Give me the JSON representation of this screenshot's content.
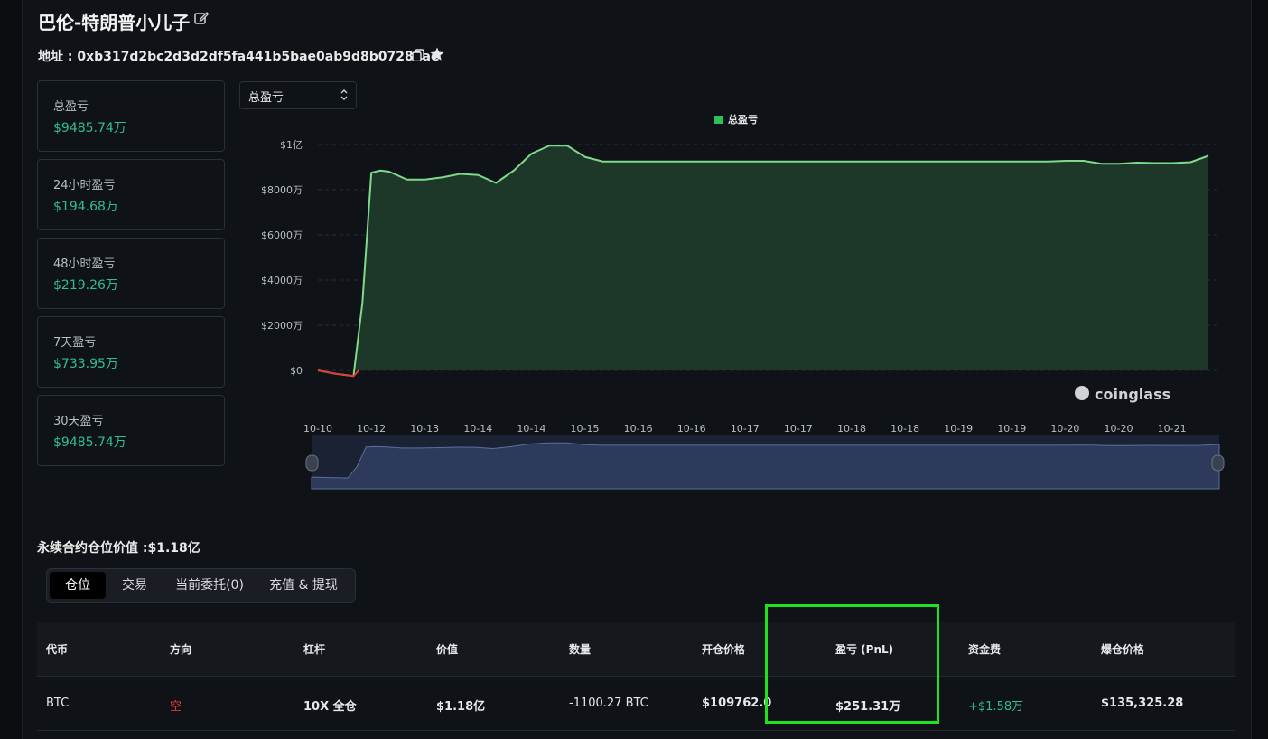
{
  "header": {
    "title": "巴伦-特朗普小儿子",
    "address_label": "地址 : 0xb317d2bc2d3d2df5fa441b5bae0ab9d8b07283ae"
  },
  "stats": [
    {
      "label": "总盈亏",
      "value": "$9485.74万"
    },
    {
      "label": "24小时盈亏",
      "value": "$194.68万"
    },
    {
      "label": "48小时盈亏",
      "value": "$219.26万"
    },
    {
      "label": "7天盈亏",
      "value": "$733.95万"
    },
    {
      "label": "30天盈亏",
      "value": "$9485.74万"
    }
  ],
  "chart_selector": {
    "selected": "总盈亏"
  },
  "chart_data": {
    "type": "area",
    "legend": [
      "总盈亏"
    ],
    "legend_position": "top-center",
    "y_tick_labels": [
      "$0",
      "$2000万",
      "$4000万",
      "$6000万",
      "$8000万",
      "$1亿"
    ],
    "x_tick_labels": [
      "10-10",
      "10-12",
      "10-13",
      "10-14",
      "10-14",
      "10-15",
      "10-16",
      "10-16",
      "10-17",
      "10-17",
      "10-18",
      "10-18",
      "10-19",
      "10-19",
      "10-20",
      "10-20",
      "10-21"
    ],
    "ylim": [
      -500,
      10000
    ],
    "y_unit": "万",
    "series": [
      {
        "name": "总盈亏",
        "color": "#7fd98a",
        "negative_color": "#e03b3b",
        "x": [
          0,
          1,
          2,
          2.5,
          3,
          3.5,
          4,
          5,
          6,
          7,
          8,
          9,
          10,
          11,
          12,
          13,
          14,
          15,
          16,
          17,
          18,
          19,
          20,
          21,
          22,
          23,
          24,
          25,
          26,
          27,
          28,
          29,
          30,
          31,
          32,
          33,
          34,
          35,
          36,
          37,
          38,
          39,
          40,
          41,
          42,
          43,
          44,
          45,
          46,
          47,
          48,
          49,
          50
        ],
        "values": [
          0,
          -150,
          -250,
          3000,
          8750,
          8850,
          8800,
          8450,
          8450,
          8550,
          8700,
          8650,
          8300,
          8850,
          9600,
          9950,
          9950,
          9450,
          9250,
          9250,
          9250,
          9250,
          9250,
          9250,
          9250,
          9250,
          9250,
          9250,
          9250,
          9250,
          9250,
          9250,
          9250,
          9250,
          9250,
          9250,
          9250,
          9250,
          9250,
          9250,
          9250,
          9250,
          9250,
          9250,
          9280,
          9280,
          9150,
          9150,
          9200,
          9180,
          9180,
          9220,
          9500
        ]
      }
    ],
    "grid": true
  },
  "watermark": "coinglass",
  "positions": {
    "title": "永续合约仓位价值 :$1.18亿",
    "tabs": [
      "仓位",
      "交易",
      "当前委托(0)",
      "充值 & 提现"
    ],
    "active_tab": 0,
    "columns": [
      "代币",
      "方向",
      "杠杆",
      "价值",
      "数量",
      "开仓价格",
      "盈亏 (PnL)",
      "资金费",
      "爆仓价格"
    ],
    "rows": [
      [
        "BTC",
        "空",
        "10X 全仓",
        "$1.18亿",
        "-1100.27 BTC",
        "$109762.0",
        "$251.31万",
        "+$1.58万",
        "$135,325.28"
      ]
    ]
  },
  "colors": {
    "positive": "#2fbf8f",
    "negative": "#e03b3b",
    "highlight": "#1de21d",
    "navigator": "#2d3a5c"
  }
}
